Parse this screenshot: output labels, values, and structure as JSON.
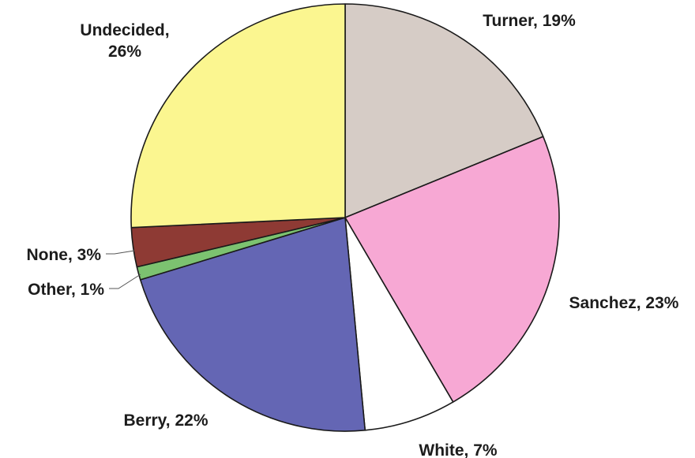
{
  "chart_data": {
    "type": "pie",
    "title": "",
    "slices": [
      {
        "label": "Turner",
        "value": 19,
        "text": "Turner, 19%",
        "color": "#d6ccc6"
      },
      {
        "label": "Sanchez",
        "value": 23,
        "text": "Sanchez, 23%",
        "color": "#f7a8d4"
      },
      {
        "label": "White",
        "value": 7,
        "text": "White, 7%",
        "color": "#ffffff"
      },
      {
        "label": "Berry",
        "value": 22,
        "text": "Berry, 22%",
        "color": "#6466b4"
      },
      {
        "label": "Other",
        "value": 1,
        "text": "Other, 1%",
        "color": "#7cc270"
      },
      {
        "label": "None",
        "value": 3,
        "text": "None, 3%",
        "color": "#8e3a34"
      },
      {
        "label": "Undecided",
        "value": 26,
        "text": [
          "Undecided,",
          "26%"
        ],
        "color": "#fbf690"
      }
    ],
    "start_angle": "12 o'clock",
    "direction": "clockwise",
    "legend": "none",
    "outline_color": "#1a1a1a"
  }
}
